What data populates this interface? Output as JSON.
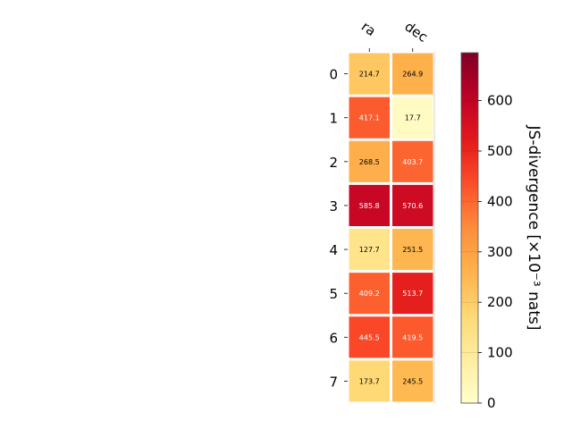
{
  "chart_data": {
    "type": "heatmap",
    "title": "",
    "columns": [
      "ra",
      "dec"
    ],
    "rows": [
      "0",
      "1",
      "2",
      "3",
      "4",
      "5",
      "6",
      "7"
    ],
    "values": [
      [
        214.7,
        264.9
      ],
      [
        417.1,
        17.7
      ],
      [
        268.5,
        403.7
      ],
      [
        585.8,
        570.6
      ],
      [
        127.7,
        251.5
      ],
      [
        409.2,
        513.7
      ],
      [
        445.5,
        419.5
      ],
      [
        173.7,
        245.5
      ]
    ],
    "cell_labels": [
      [
        "214.7",
        "264.9"
      ],
      [
        "417.1",
        "17.7"
      ],
      [
        "268.5",
        "403.7"
      ],
      [
        "585.8",
        "570.6"
      ],
      [
        "127.7",
        "251.5"
      ],
      [
        "409.2",
        "513.7"
      ],
      [
        "445.5",
        "419.5"
      ],
      [
        "173.7",
        "245.5"
      ]
    ],
    "colorbar": {
      "label": "JS-divergence [×10⁻³ nats]",
      "min": 0,
      "max": 695,
      "ticks": [
        0,
        100,
        200,
        300,
        400,
        500,
        600
      ],
      "tick_labels": [
        "0",
        "100",
        "200",
        "300",
        "400",
        "500",
        "600"
      ],
      "colormap": "YlOrRd"
    }
  }
}
